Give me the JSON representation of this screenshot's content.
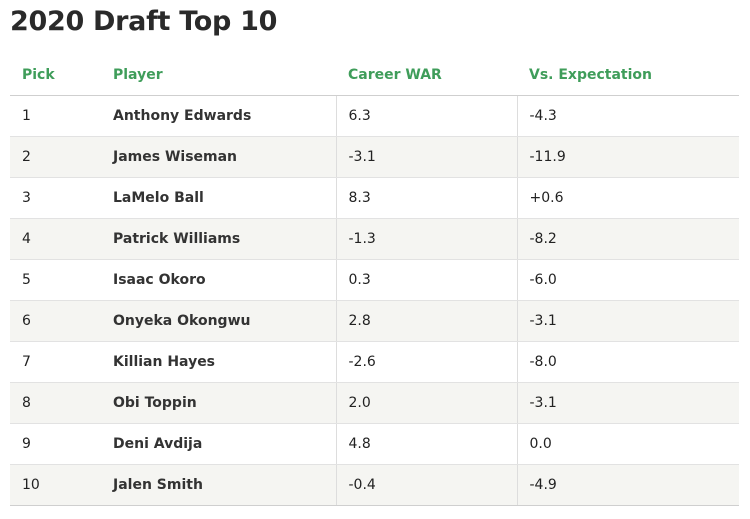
{
  "title": "2020 Draft Top 10",
  "columns": {
    "pick": "Pick",
    "player": "Player",
    "war": "Career WAR",
    "vs": "Vs. Expectation"
  },
  "rows": [
    {
      "pick": "1",
      "player": "Anthony Edwards",
      "war": "6.3",
      "vs": "-4.3"
    },
    {
      "pick": "2",
      "player": "James Wiseman",
      "war": "-3.1",
      "vs": "-11.9"
    },
    {
      "pick": "3",
      "player": "LaMelo Ball",
      "war": "8.3",
      "vs": "+0.6"
    },
    {
      "pick": "4",
      "player": "Patrick Williams",
      "war": "-1.3",
      "vs": "-8.2"
    },
    {
      "pick": "5",
      "player": "Isaac Okoro",
      "war": "0.3",
      "vs": "-6.0"
    },
    {
      "pick": "6",
      "player": "Onyeka Okongwu",
      "war": "2.8",
      "vs": "-3.1"
    },
    {
      "pick": "7",
      "player": "Killian Hayes",
      "war": "-2.6",
      "vs": "-8.0"
    },
    {
      "pick": "8",
      "player": "Obi Toppin",
      "war": "2.0",
      "vs": "-3.1"
    },
    {
      "pick": "9",
      "player": "Deni Avdija",
      "war": "4.8",
      "vs": "0.0"
    },
    {
      "pick": "10",
      "player": "Jalen Smith",
      "war": "-0.4",
      "vs": "-4.9"
    }
  ],
  "colors": {
    "header": "#3f9d5a",
    "row_alt": "#f5f5f2"
  }
}
